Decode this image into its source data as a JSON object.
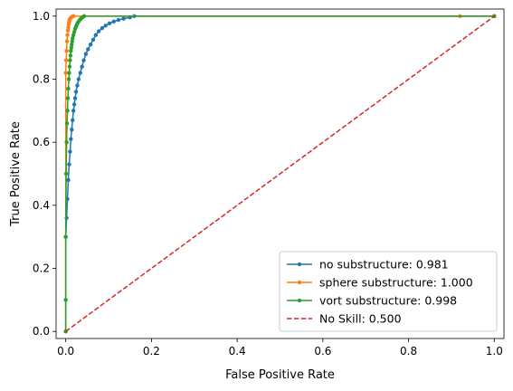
{
  "chart_data": {
    "type": "line",
    "title": "",
    "xlabel": "False Positive Rate",
    "ylabel": "True Positive Rate",
    "xlim": [
      -0.0225,
      1.0225
    ],
    "ylim": [
      -0.0225,
      1.0225
    ],
    "xticks": [
      0.0,
      0.2,
      0.4,
      0.6,
      0.8,
      1.0
    ],
    "yticks": [
      0.0,
      0.2,
      0.4,
      0.6,
      0.8,
      1.0
    ],
    "xtick_labels": [
      "0.0",
      "0.2",
      "0.4",
      "0.6",
      "0.8",
      "1.0"
    ],
    "ytick_labels": [
      "0.0",
      "0.2",
      "0.4",
      "0.6",
      "0.8",
      "1.0"
    ],
    "grid": false,
    "legend_position": "lower-right",
    "series": [
      {
        "name": "no substructure: 0.981",
        "color": "#1f77b4",
        "marker": "dot",
        "dashed": false,
        "x": [
          0.0,
          0.0,
          0.002,
          0.004,
          0.006,
          0.008,
          0.01,
          0.012,
          0.014,
          0.016,
          0.018,
          0.02,
          0.022,
          0.024,
          0.027,
          0.03,
          0.034,
          0.038,
          0.042,
          0.047,
          0.052,
          0.058,
          0.064,
          0.07,
          0.077,
          0.085,
          0.093,
          0.102,
          0.112,
          0.123,
          0.135,
          0.15,
          0.16,
          1.0
        ],
        "y": [
          0.0,
          0.3,
          0.36,
          0.42,
          0.48,
          0.53,
          0.57,
          0.61,
          0.64,
          0.67,
          0.7,
          0.72,
          0.74,
          0.76,
          0.78,
          0.8,
          0.82,
          0.84,
          0.86,
          0.88,
          0.895,
          0.91,
          0.925,
          0.94,
          0.952,
          0.962,
          0.97,
          0.977,
          0.983,
          0.988,
          0.992,
          0.996,
          1.0,
          1.0
        ]
      },
      {
        "name": "sphere substructure: 1.000",
        "color": "#ff7f0e",
        "marker": "dot",
        "dashed": false,
        "x": [
          0.0,
          0.0,
          0.001,
          0.002,
          0.003,
          0.004,
          0.005,
          0.006,
          0.007,
          0.008,
          0.009,
          0.01,
          0.012,
          0.014,
          0.016,
          0.018,
          0.92,
          1.0
        ],
        "y": [
          0.0,
          0.82,
          0.86,
          0.89,
          0.92,
          0.94,
          0.955,
          0.965,
          0.975,
          0.982,
          0.988,
          0.992,
          0.995,
          0.997,
          0.999,
          1.0,
          1.0,
          1.0
        ]
      },
      {
        "name": "vort substructure: 0.998",
        "color": "#2ca02c",
        "marker": "dot",
        "dashed": false,
        "x": [
          0.0,
          0.0,
          0.0,
          0.001,
          0.002,
          0.003,
          0.004,
          0.005,
          0.006,
          0.007,
          0.008,
          0.009,
          0.01,
          0.011,
          0.012,
          0.013,
          0.014,
          0.015,
          0.016,
          0.018,
          0.02,
          0.022,
          0.024,
          0.026,
          0.028,
          0.031,
          0.034,
          0.037,
          0.04,
          0.043,
          1.0
        ],
        "y": [
          0.0,
          0.1,
          0.3,
          0.5,
          0.6,
          0.66,
          0.7,
          0.74,
          0.77,
          0.8,
          0.82,
          0.84,
          0.86,
          0.875,
          0.89,
          0.9,
          0.91,
          0.92,
          0.93,
          0.94,
          0.95,
          0.96,
          0.967,
          0.973,
          0.979,
          0.985,
          0.99,
          0.994,
          0.997,
          1.0,
          1.0
        ]
      },
      {
        "name": "No Skill: 0.500",
        "color": "#d62728",
        "marker": "none",
        "dashed": true,
        "x": [
          0.0,
          1.0
        ],
        "y": [
          0.0,
          1.0
        ]
      }
    ]
  }
}
